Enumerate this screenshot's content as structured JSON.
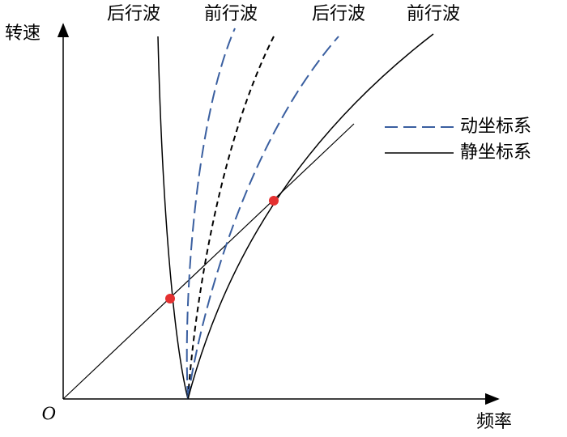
{
  "axes": {
    "y_label": "转速",
    "x_label": "频率",
    "origin": "O"
  },
  "curve_labels": [
    "后行波",
    "前行波",
    "后行波",
    "前行波"
  ],
  "legend": [
    "动坐标系",
    "静坐标系"
  ]
}
